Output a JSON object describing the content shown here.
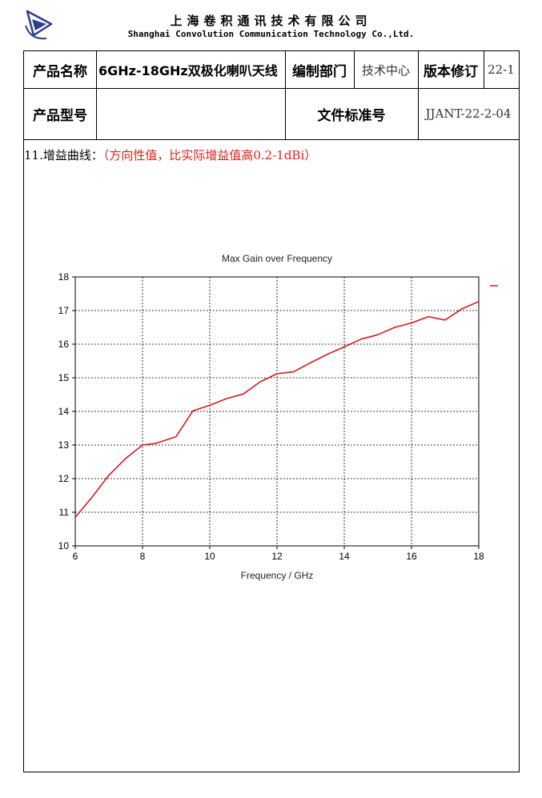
{
  "header": {
    "logo_icon": "triangle-arrow-logo-icon",
    "company_cn": "上海卷积通讯技术有限公司",
    "company_en": "Shanghai Convolution Communication Technology Co.,Ltd."
  },
  "table": {
    "row1": {
      "product_name_label": "产品名称",
      "product_name_value": "6GHz-18GHz双极化喇叭天线",
      "dept_label": "编制部门",
      "dept_value": "技术中心",
      "revision_label": "版本修订",
      "revision_value": "22-1"
    },
    "row2": {
      "model_label": "产品型号",
      "model_value": "",
      "standard_label": "文件标准号",
      "standard_value": "JJANT-22-2-04"
    }
  },
  "section": {
    "heading": "11.增益曲线：",
    "note": "（方向性值，比实际增益值高0.2-1dBi）"
  },
  "chart_data": {
    "type": "line",
    "title": "Max Gain over Frequency",
    "xlabel": "Frequency / GHz",
    "ylabel": "",
    "xlim": [
      6,
      18
    ],
    "ylim": [
      10,
      18
    ],
    "xticks": [
      6,
      8,
      10,
      12,
      14,
      16,
      18
    ],
    "yticks": [
      10,
      11,
      12,
      13,
      14,
      15,
      16,
      17,
      18
    ],
    "grid": true,
    "legend": "right",
    "series": [
      {
        "color": "#d7191c",
        "x": [
          6,
          6.5,
          7,
          7.5,
          8,
          8.4,
          9,
          9.5,
          10,
          10.5,
          11,
          11.5,
          12,
          12.5,
          13,
          13.5,
          14,
          14.5,
          15,
          15.5,
          16,
          16.5,
          17,
          17.5,
          18
        ],
        "y": [
          10.85,
          11.45,
          12.1,
          12.6,
          13.0,
          13.05,
          13.25,
          14.02,
          14.18,
          14.38,
          14.52,
          14.88,
          15.12,
          15.18,
          15.45,
          15.7,
          15.92,
          16.15,
          16.28,
          16.5,
          16.63,
          16.82,
          16.72,
          17.05,
          17.27
        ]
      }
    ]
  }
}
